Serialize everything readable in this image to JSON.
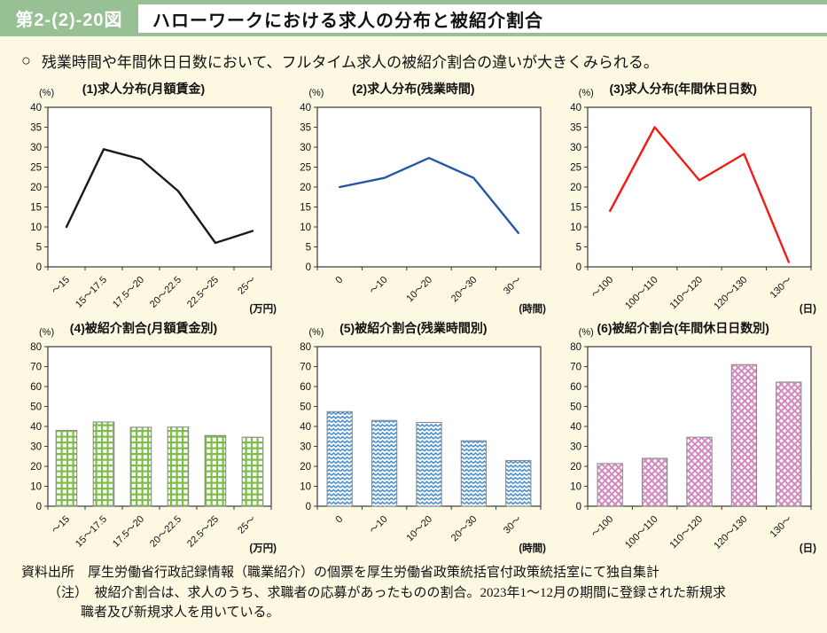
{
  "header": {
    "figure_no": "第2-(2)-20図",
    "title": "ハローワークにおける求人の分布と被紹介割合"
  },
  "summary": {
    "bullet": "○",
    "text": "残業時間や年間休日日数において、フルタイム求人の被紹介割合の違いが大きくみられる。"
  },
  "colors": {
    "header_green": "#97C095",
    "page_cream": "#FCF8E2",
    "line1_black": "#1A1A1A",
    "line2_blue": "#2456A8",
    "line3_red": "#F21B12",
    "bar_green": "#7DBE4A",
    "bar_blue": "#3C88CC",
    "bar_pink": "#D486BE"
  },
  "chart_data": [
    {
      "type": "line",
      "title": "(1)求人分布(月額賃金)",
      "unit_y": "(%)",
      "unit_x": "(万円)",
      "color": "#1A1A1A",
      "ylim": [
        0,
        40
      ],
      "ytick": 5,
      "categories": [
        "～15",
        "15～17.5",
        "17.5～20",
        "20～22.5",
        "22.5～25",
        "25～"
      ],
      "values": [
        10,
        29.5,
        27,
        19,
        6,
        9
      ]
    },
    {
      "type": "line",
      "title": "(2)求人分布(残業時間)",
      "unit_y": "(%)",
      "unit_x": "(時間)",
      "color": "#2456A8",
      "ylim": [
        0,
        40
      ],
      "ytick": 5,
      "categories": [
        "0",
        "～10",
        "10～20",
        "20～30",
        "30～"
      ],
      "values": [
        20,
        22.3,
        27.3,
        22.3,
        8.5
      ]
    },
    {
      "type": "line",
      "title": "(3)求人分布(年間休日日数)",
      "unit_y": "(%)",
      "unit_x": "(日)",
      "color": "#F21B12",
      "ylim": [
        0,
        40
      ],
      "ytick": 5,
      "categories": [
        "～100",
        "100～110",
        "110～120",
        "120～130",
        "130～"
      ],
      "values": [
        14,
        35,
        21.7,
        28.3,
        1.2
      ]
    },
    {
      "type": "bar",
      "pattern": "grid",
      "title": "(4)被紹介割合(月額賃金別)",
      "unit_y": "(%)",
      "unit_x": "(万円)",
      "color": "#7DBE4A",
      "ylim": [
        0,
        80
      ],
      "ytick": 10,
      "categories": [
        "～15",
        "15～17.5",
        "17.5～20",
        "20～22.5",
        "22.5～25",
        "25～"
      ],
      "values": [
        38,
        42.2,
        39.6,
        39.7,
        35.4,
        34.6
      ]
    },
    {
      "type": "bar",
      "pattern": "zigzag",
      "title": "(5)被紹介割合(残業時間別)",
      "unit_y": "(%)",
      "unit_x": "(時間)",
      "color": "#3C88CC",
      "ylim": [
        0,
        80
      ],
      "ytick": 10,
      "categories": [
        "0",
        "～10",
        "10～20",
        "20～30",
        "30～"
      ],
      "values": [
        47.4,
        43,
        42,
        32.8,
        22.9
      ]
    },
    {
      "type": "bar",
      "pattern": "diamond",
      "title": "(6)被紹介割合(年間休日日数別)",
      "unit_y": "(%)",
      "unit_x": "(日)",
      "color": "#D486BE",
      "ylim": [
        0,
        80
      ],
      "ytick": 10,
      "categories": [
        "～100",
        "100～110",
        "110～120",
        "120～130",
        "130～"
      ],
      "values": [
        21.4,
        24,
        34.6,
        71,
        62.2
      ]
    }
  ],
  "footer": {
    "source": "資料出所　厚生労働省行政記録情報（職業紹介）の個票を厚生労働省政策統括官付政策統括室にて独自集計",
    "note1": "（注）　被紹介割合は、求人のうち、求職者の応募があったものの割合。2023年1～12月の期間に登録された新規求",
    "note2": "職者及び新規求人を用いている。"
  }
}
